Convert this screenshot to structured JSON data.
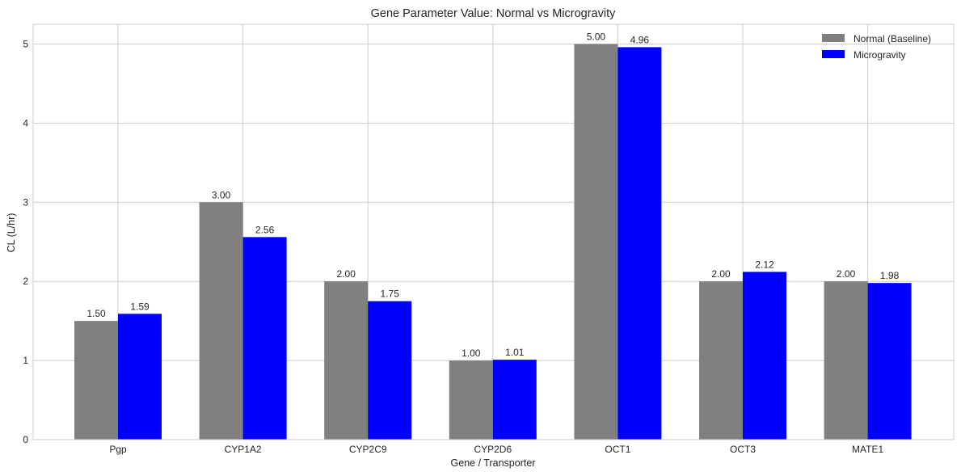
{
  "chart_data": {
    "type": "bar",
    "title": "Gene Parameter Value: Normal vs Microgravity",
    "xlabel": "Gene / Transporter",
    "ylabel": "CL (L/hr)",
    "ylim": [
      0,
      5.25
    ],
    "yticks": [
      0,
      1,
      2,
      3,
      4,
      5
    ],
    "grid": true,
    "legend_position": "top-right",
    "categories": [
      "Pgp",
      "CYP1A2",
      "CYP2C9",
      "CYP2D6",
      "OCT1",
      "OCT3",
      "MATE1"
    ],
    "series": [
      {
        "name": "Normal (Baseline)",
        "color": "#808080",
        "values": [
          1.5,
          3.0,
          2.0,
          1.0,
          5.0,
          2.0,
          2.0
        ],
        "labels": [
          "1.50",
          "3.00",
          "2.00",
          "1.00",
          "5.00",
          "2.00",
          "2.00"
        ]
      },
      {
        "name": "Microgravity",
        "color": "#0000ff",
        "values": [
          1.59,
          2.56,
          1.75,
          1.01,
          4.96,
          2.12,
          1.98
        ],
        "labels": [
          "1.59",
          "2.56",
          "1.75",
          "1.01",
          "4.96",
          "2.12",
          "1.98"
        ]
      }
    ]
  }
}
